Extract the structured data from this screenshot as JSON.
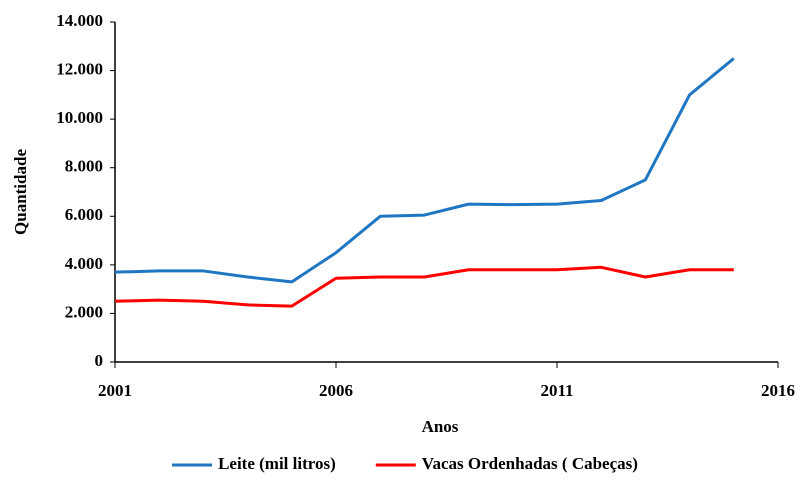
{
  "chart_data": {
    "type": "line",
    "x_label": "Anos",
    "y_label": "Quantidade",
    "x": [
      2001,
      2002,
      2003,
      2004,
      2005,
      2006,
      2007,
      2008,
      2009,
      2010,
      2011,
      2012,
      2013,
      2014,
      2015
    ],
    "series": [
      {
        "name": "Leite (mil litros)",
        "color": "#1f77c4",
        "values": [
          3700,
          3750,
          3750,
          3500,
          3300,
          4500,
          6000,
          6050,
          6500,
          6480,
          6500,
          6650,
          7500,
          11000,
          12500
        ]
      },
      {
        "name": "Vacas Ordenhadas ( Cabeças)",
        "color": "#ff0000",
        "values": [
          2500,
          2550,
          2500,
          2350,
          2300,
          3450,
          3500,
          3500,
          3800,
          3800,
          3800,
          3900,
          3500,
          3800,
          3800
        ]
      }
    ],
    "xlim": [
      2001,
      2016
    ],
    "xticks": [
      2001,
      2006,
      2011,
      2016
    ],
    "ylim": [
      0,
      14000
    ],
    "yticks": [
      0,
      {
        "value": 2000,
        "label": "2.000"
      },
      {
        "value": 4000,
        "label": "4.000"
      },
      {
        "value": 6000,
        "label": "6.000"
      },
      {
        "value": 8000,
        "label": "8.000"
      },
      {
        "value": 10000,
        "label": "10.000"
      },
      {
        "value": 12000,
        "label": "12.000"
      },
      {
        "value": 14000,
        "label": "14.000"
      }
    ],
    "grid": false,
    "legend": "bottom"
  }
}
